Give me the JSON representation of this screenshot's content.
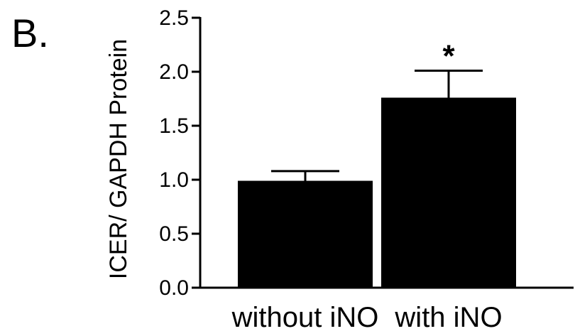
{
  "panel_label": "B.",
  "chart_data": {
    "type": "bar",
    "title": "",
    "xlabel": "",
    "ylabel": "ICER/ GAPDH Protein",
    "categories": [
      "without iNO",
      "with iNO"
    ],
    "values": [
      0.99,
      1.76
    ],
    "errors": [
      0.09,
      0.25
    ],
    "ylim": [
      0,
      2.5
    ],
    "yticks": [
      0.0,
      0.5,
      1.0,
      1.5,
      2.0,
      2.5
    ],
    "ytick_labels": [
      "0.0",
      "0.5",
      "1.0",
      "1.5",
      "2.0",
      "2.5"
    ],
    "annotations": [
      {
        "category": "with iNO",
        "text": "*"
      }
    ],
    "bar_color": "#000000",
    "grid": false,
    "legend": "none"
  }
}
